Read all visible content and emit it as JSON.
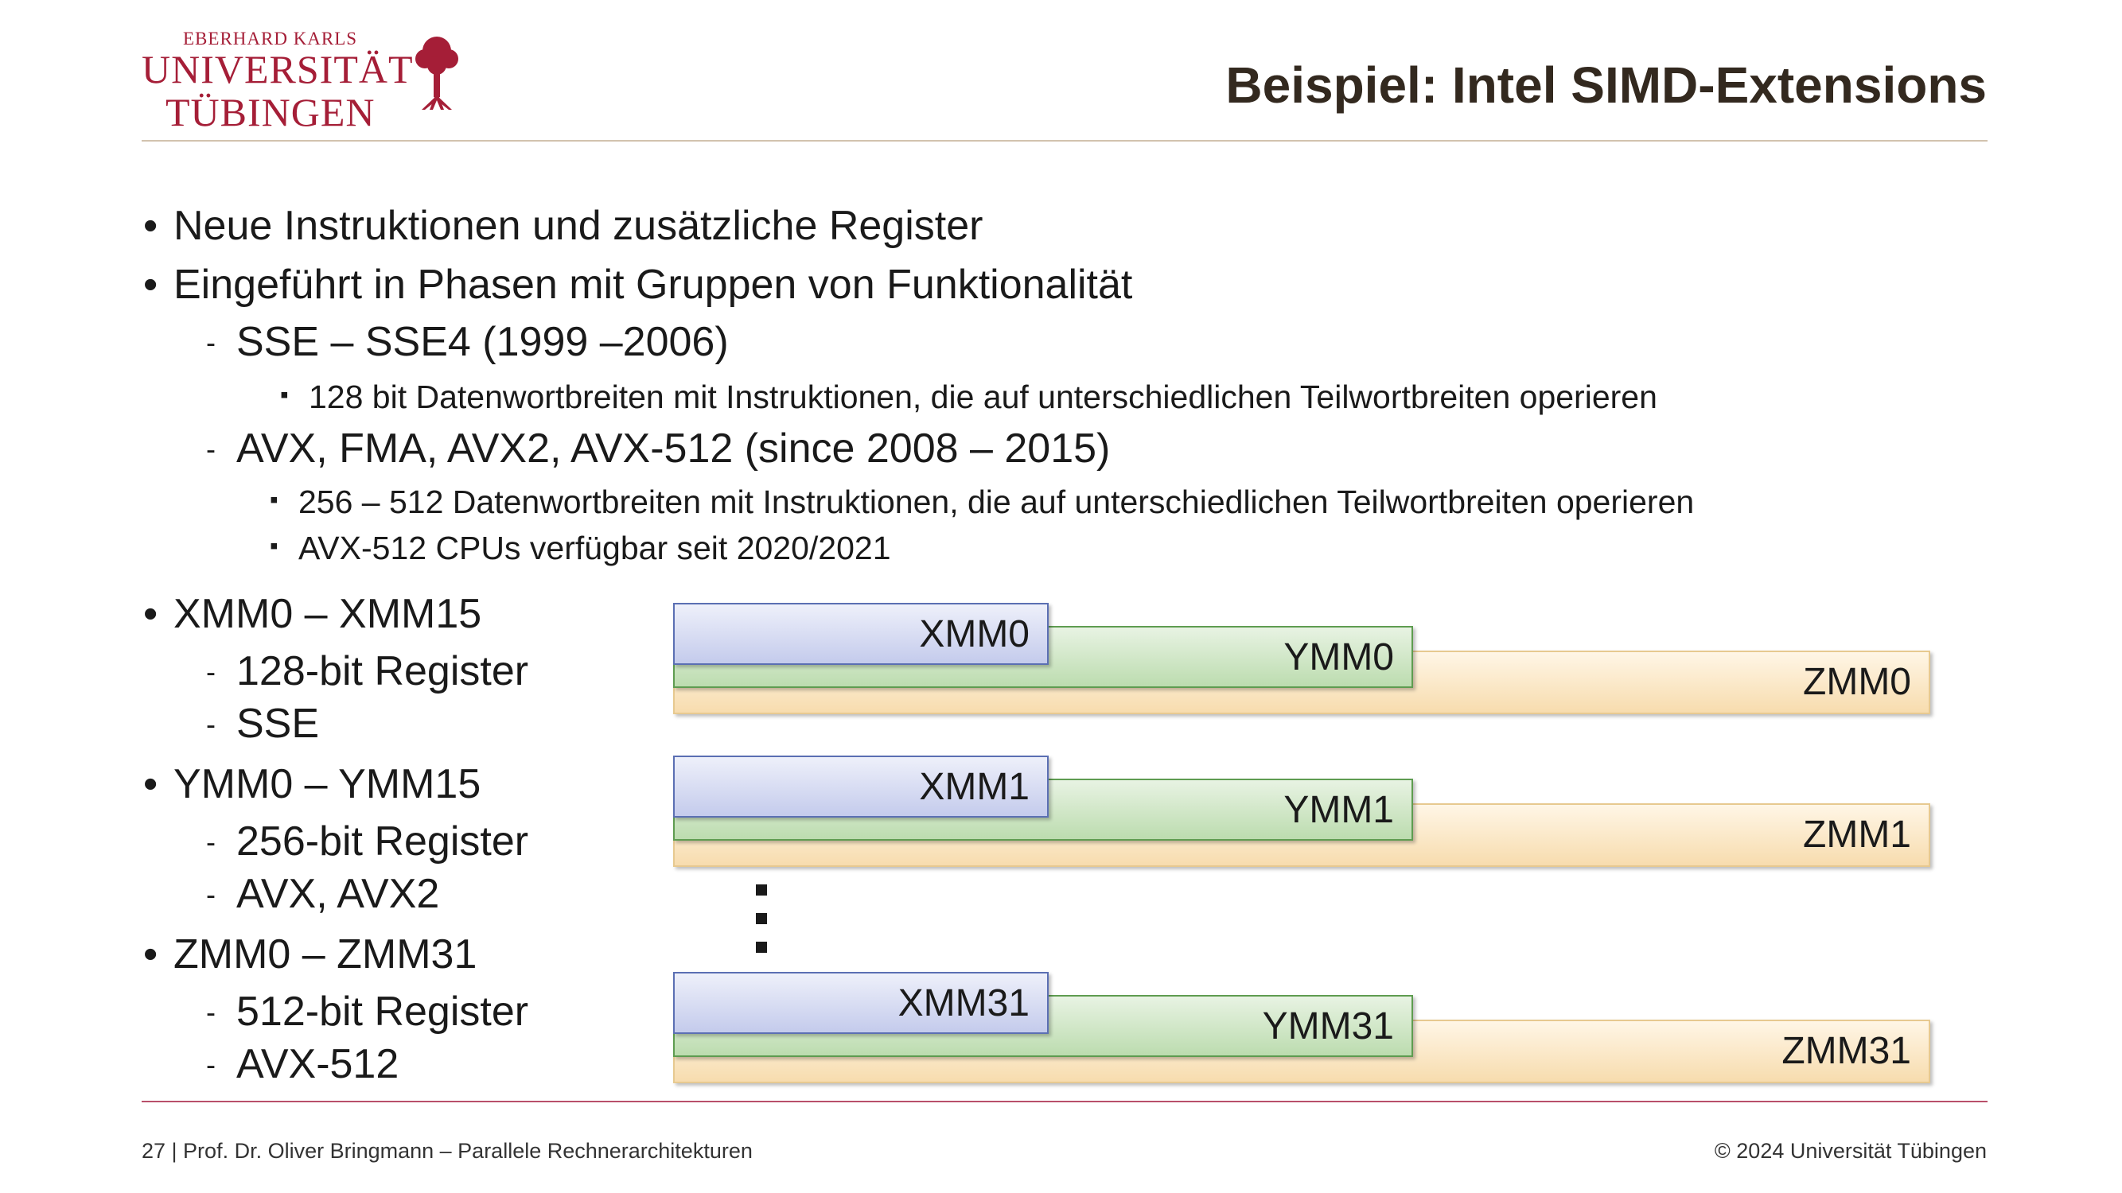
{
  "header": {
    "logo_line1": "EBERHARD KARLS",
    "logo_line2": "UNIVERSITÄT",
    "logo_line3": "TÜBINGEN",
    "title": "Beispiel: Intel SIMD-Extensions"
  },
  "bullets": {
    "b1": "Neue Instruktionen und zusätzliche Register",
    "b2": "Eingeführt in Phasen mit Gruppen von Funktionalität",
    "b2_1": "SSE – SSE4 (1999 –2006)",
    "b2_1_1": "128 bit Datenwortbreiten mit Instruktionen, die auf unterschiedlichen Teilwortbreiten operieren",
    "b2_2": "AVX, FMA, AVX2, AVX-512 (since 2008 – 2015)",
    "b2_2_1": "256 – 512 Datenwortbreiten mit Instruktionen, die auf unterschiedlichen Teilwortbreiten operieren",
    "b2_2_2": "AVX-512 CPUs verfügbar seit 2020/2021",
    "b3": "XMM0 – XMM15",
    "b3_1": "128-bit Register",
    "b3_2": "SSE",
    "b4": "YMM0 – YMM15",
    "b4_1": "256-bit Register",
    "b4_2": "AVX, AVX2",
    "b5": "ZMM0 – ZMM31",
    "b5_1": "512-bit Register",
    "b5_2": "AVX-512"
  },
  "registers": {
    "g0": {
      "xmm": "XMM0",
      "ymm": "YMM0",
      "zmm": "ZMM0"
    },
    "g1": {
      "xmm": "XMM1",
      "ymm": "YMM1",
      "zmm": "ZMM1"
    },
    "g31": {
      "xmm": "XMM31",
      "ymm": "YMM31",
      "zmm": "ZMM31"
    }
  },
  "footer": {
    "left": "27 | Prof. Dr. Oliver Bringmann – Parallele Rechnerarchitekturen",
    "right": "© 2024 Universität Tübingen"
  },
  "colors": {
    "brand": "#a51e37",
    "title": "#33291f",
    "xmm": "#c4cbec",
    "ymm": "#bcdcaf",
    "zmm": "#f7dcae"
  }
}
